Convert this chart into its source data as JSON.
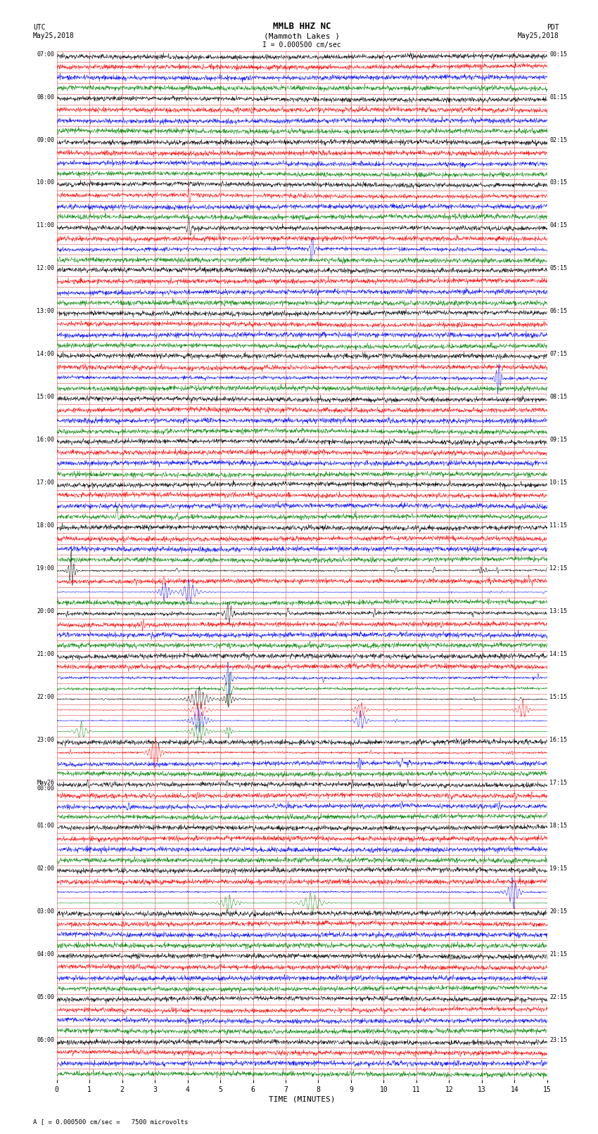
{
  "title_line1": "MMLB HHZ NC",
  "title_line2": "(Mammoth Lakes )",
  "title_scale": "I = 0.000500 cm/sec",
  "left_label_line1": "UTC",
  "left_label_line2": "May25,2018",
  "right_label_line1": "PDT",
  "right_label_line2": "May25,2018",
  "xlabel": "TIME (MINUTES)",
  "footer": "A [ = 0.000500 cm/sec =   7500 microvolts",
  "bg_color": "#ffffff",
  "grid_color": "#cc0000",
  "trace_colors": [
    "black",
    "red",
    "blue",
    "green"
  ],
  "utc_labels": [
    "07:00",
    "08:00",
    "09:00",
    "10:00",
    "11:00",
    "12:00",
    "13:00",
    "14:00",
    "15:00",
    "16:00",
    "17:00",
    "18:00",
    "19:00",
    "20:00",
    "21:00",
    "22:00",
    "23:00",
    "May26\n00:00",
    "01:00",
    "02:00",
    "03:00",
    "04:00",
    "05:00",
    "06:00"
  ],
  "pdt_labels": [
    "00:15",
    "01:15",
    "02:15",
    "03:15",
    "04:15",
    "05:15",
    "06:15",
    "07:15",
    "08:15",
    "09:15",
    "10:15",
    "11:15",
    "12:15",
    "13:15",
    "14:15",
    "15:15",
    "16:15",
    "17:15",
    "18:15",
    "19:15",
    "20:15",
    "21:15",
    "22:15",
    "23:15"
  ],
  "n_groups": 24,
  "n_points": 1800,
  "figsize": [
    8.5,
    16.13
  ],
  "dpi": 100
}
